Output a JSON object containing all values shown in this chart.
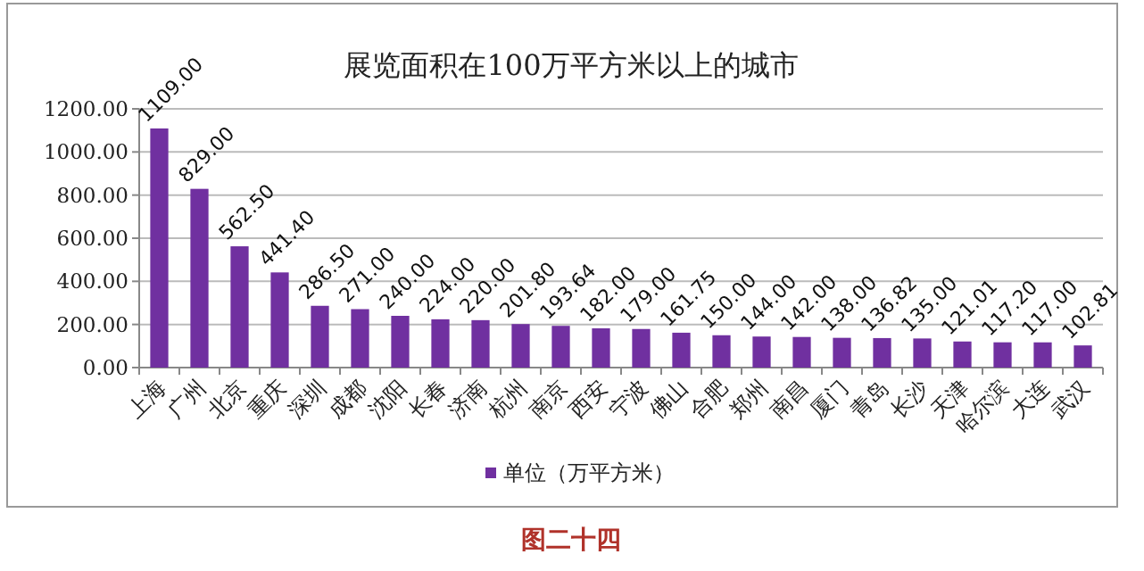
{
  "chart_data": {
    "type": "bar",
    "title": "展览面积在100万平方米以上的城市",
    "categories": [
      "上海",
      "广州",
      "北京",
      "重庆",
      "深圳",
      "成都",
      "沈阳",
      "长春",
      "济南",
      "杭州",
      "南京",
      "西安",
      "宁波",
      "佛山",
      "合肥",
      "郑州",
      "南昌",
      "厦门",
      "青岛",
      "长沙",
      "天津",
      "哈尔滨",
      "大连",
      "武汉"
    ],
    "series": [
      {
        "name": "单位（万平方米）",
        "color": "#7030a0",
        "values": [
          1109,
          829,
          562.5,
          441.4,
          286.5,
          271,
          240,
          224,
          220,
          201.8,
          193.64,
          182,
          179,
          161.75,
          150,
          144,
          142,
          138,
          136.82,
          135,
          121.01,
          117.2,
          117,
          102.81
        ],
        "value_labels": [
          "1109.00",
          "829.00",
          "562.50",
          "441.40",
          "286.50",
          "271.00",
          "240.00",
          "224.00",
          "220.00",
          "201.80",
          "193.64",
          "182.00",
          "179.00",
          "161.75",
          "150.00",
          "144.00",
          "142.00",
          "138.00",
          "136.82",
          "135.00",
          "121.01",
          "117.20",
          "117.00",
          "102.81"
        ]
      }
    ],
    "ylim": [
      0,
      1200
    ],
    "yticks": [
      {
        "value": 0,
        "label": "0.00"
      },
      {
        "value": 200,
        "label": "200.00"
      },
      {
        "value": 400,
        "label": "400.00"
      },
      {
        "value": 600,
        "label": "600.00"
      },
      {
        "value": 800,
        "label": "800.00"
      },
      {
        "value": 1000,
        "label": "1000.00"
      },
      {
        "value": 1200,
        "label": "1200.00"
      }
    ],
    "grid": "y",
    "legend": "bottom",
    "annotations": [
      "图二十四"
    ]
  }
}
